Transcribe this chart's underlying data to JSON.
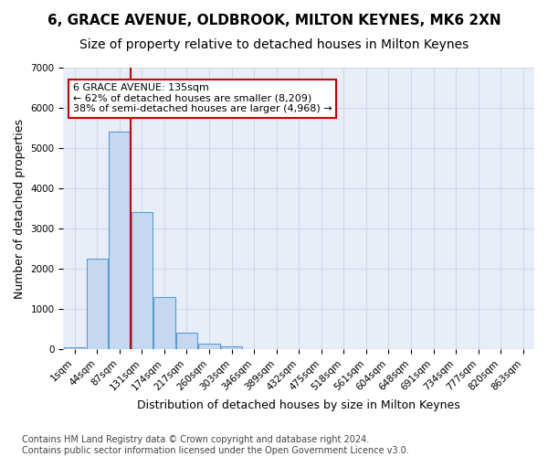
{
  "title1": "6, GRACE AVENUE, OLDBROOK, MILTON KEYNES, MK6 2XN",
  "title2": "Size of property relative to detached houses in Milton Keynes",
  "xlabel": "Distribution of detached houses by size in Milton Keynes",
  "ylabel": "Number of detached properties",
  "bin_labels": [
    "1sqm",
    "44sqm",
    "87sqm",
    "131sqm",
    "174sqm",
    "217sqm",
    "260sqm",
    "303sqm",
    "346sqm",
    "389sqm",
    "432sqm",
    "475sqm",
    "518sqm",
    "561sqm",
    "604sqm",
    "648sqm",
    "691sqm",
    "734sqm",
    "777sqm",
    "820sqm",
    "863sqm"
  ],
  "bar_values": [
    50,
    2250,
    5400,
    3400,
    1300,
    400,
    130,
    70,
    10,
    5,
    2,
    1,
    0,
    0,
    0,
    0,
    0,
    0,
    0,
    0,
    0
  ],
  "bar_color": "#c5d8f0",
  "bar_edge_color": "#5b9bd5",
  "vline_color": "#cc0000",
  "annotation_text": "6 GRACE AVENUE: 135sqm\n← 62% of detached houses are smaller (8,209)\n38% of semi-detached houses are larger (4,968) →",
  "annotation_box_color": "white",
  "annotation_box_edge_color": "#cc0000",
  "ylim": [
    0,
    7000
  ],
  "yticks": [
    0,
    1000,
    2000,
    3000,
    4000,
    5000,
    6000,
    7000
  ],
  "grid_color": "#d0d8e8",
  "bg_color": "#e8eef8",
  "footer": "Contains HM Land Registry data © Crown copyright and database right 2024.\nContains public sector information licensed under the Open Government Licence v3.0.",
  "title1_fontsize": 11,
  "title2_fontsize": 10,
  "xlabel_fontsize": 9,
  "ylabel_fontsize": 9,
  "tick_fontsize": 7.5,
  "annotation_fontsize": 8,
  "footer_fontsize": 7
}
